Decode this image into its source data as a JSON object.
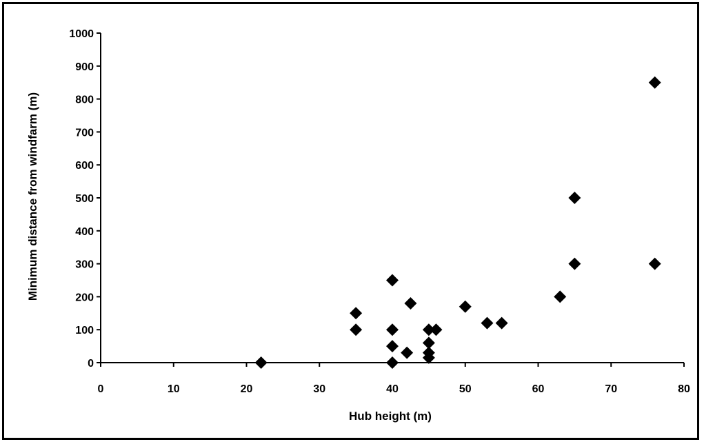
{
  "chart_data": {
    "type": "scatter",
    "title": "",
    "xlabel": "Hub height (m)",
    "ylabel": "Minimum distance from windfarm (m)",
    "xlim": [
      0,
      80
    ],
    "ylim": [
      0,
      1000
    ],
    "xticks": [
      0,
      10,
      20,
      30,
      40,
      50,
      60,
      70,
      80
    ],
    "yticks": [
      0,
      100,
      200,
      300,
      400,
      500,
      600,
      700,
      800,
      900,
      1000
    ],
    "grid": false,
    "legend": "none",
    "marker": "diamond",
    "marker_color": "#000000",
    "series": [
      {
        "points": [
          {
            "x": 22,
            "y": 0
          },
          {
            "x": 35,
            "y": 150
          },
          {
            "x": 35,
            "y": 100
          },
          {
            "x": 40,
            "y": 250
          },
          {
            "x": 40,
            "y": 100
          },
          {
            "x": 40,
            "y": 50
          },
          {
            "x": 40,
            "y": 0
          },
          {
            "x": 42,
            "y": 30
          },
          {
            "x": 42.5,
            "y": 180
          },
          {
            "x": 45,
            "y": 100
          },
          {
            "x": 45,
            "y": 60
          },
          {
            "x": 45,
            "y": 30
          },
          {
            "x": 45,
            "y": 15
          },
          {
            "x": 46,
            "y": 100
          },
          {
            "x": 50,
            "y": 170
          },
          {
            "x": 53,
            "y": 120
          },
          {
            "x": 55,
            "y": 120
          },
          {
            "x": 63,
            "y": 200
          },
          {
            "x": 65,
            "y": 500
          },
          {
            "x": 65,
            "y": 300
          },
          {
            "x": 76,
            "y": 850
          },
          {
            "x": 76,
            "y": 300
          }
        ]
      }
    ]
  }
}
